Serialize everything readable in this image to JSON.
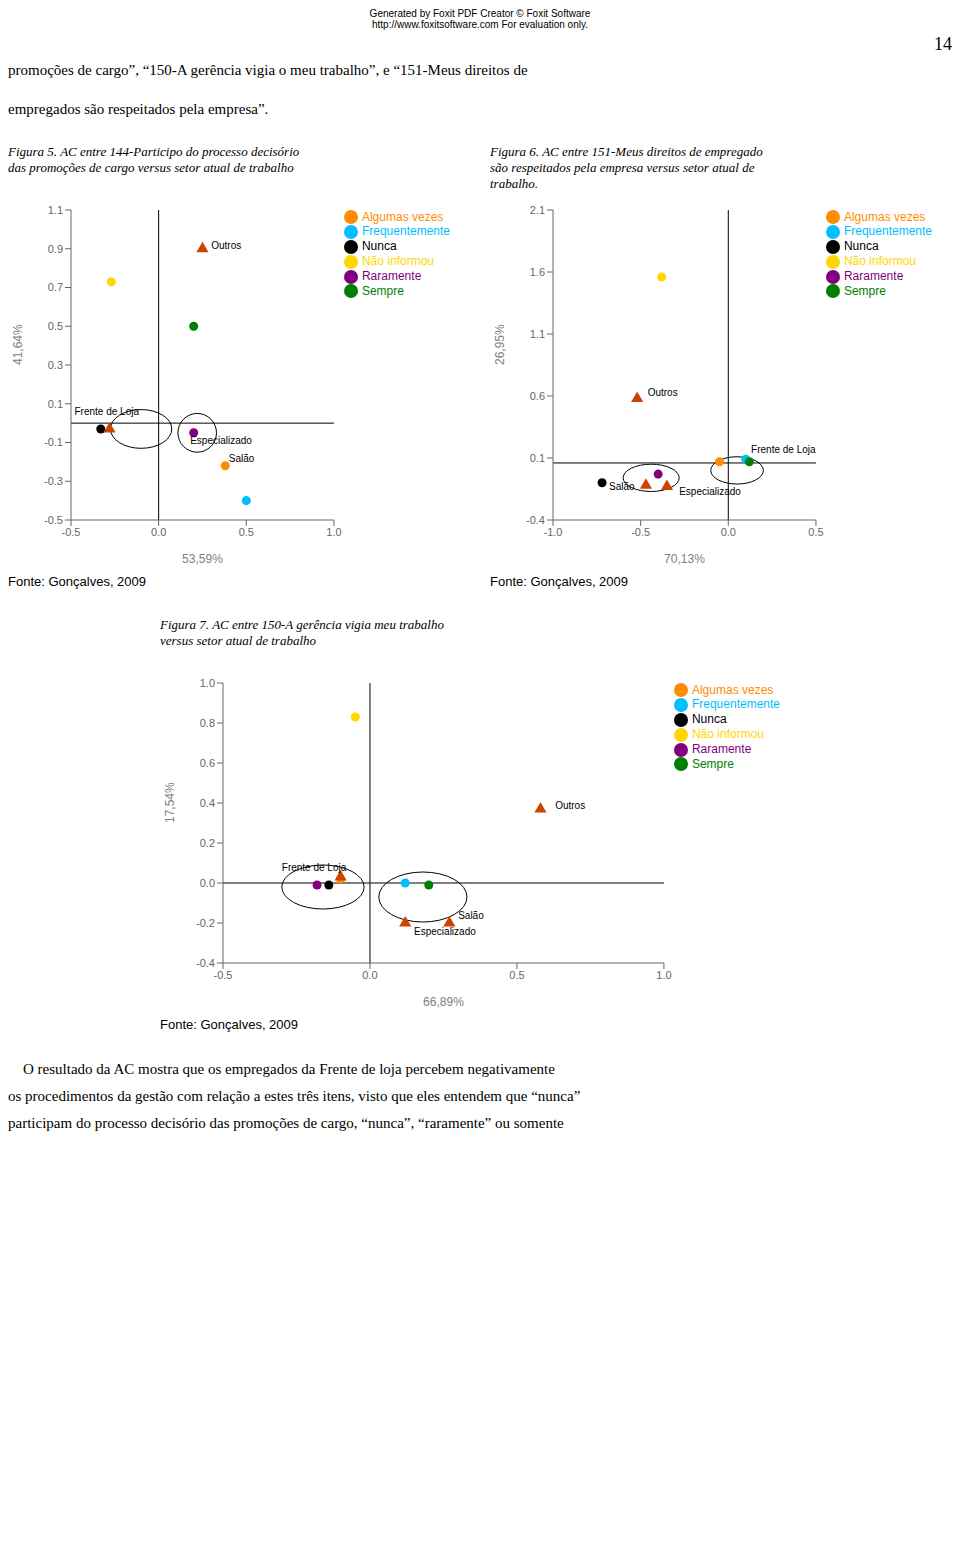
{
  "header_lines": [
    "Generated by Foxit PDF Creator © Foxit Software",
    "http://www.foxitsoftware.com    For evaluation only."
  ],
  "page_number": "14",
  "text_before": "promoções de cargo”, “150-A gerência vigia o meu trabalho”, e “151-Meus direitos de\n\nempregados são respeitados pela empresa”.",
  "text_after": "    O resultado da AC mostra que os empregados da Frente de loja percebem negativamente\nos procedimentos da gestão com relação a estes três itens, visto que eles entendem que “nunca”\nparticipam do processo decisório das promoções de cargo, “nunca”, “raramente” ou somente",
  "chart_data": [
    {
      "type": "scatter",
      "title": "Figura 5. AC entre 144-Participo do processo decisório\ndas promoções de cargo versus setor atual de trabalho",
      "source": "Fonte: Gonçalves, 2009",
      "x_label": "53,59%",
      "y_label": "41,64%",
      "xlim": [
        -0.5,
        1.0
      ],
      "ylim": [
        -0.5,
        1.1
      ],
      "xticks": [
        -0.5,
        {
          "value": 0,
          "label": "0.0"
        },
        0.5,
        {
          "value": 1,
          "label": "1.0"
        }
      ],
      "yticks": [
        -0.5,
        -0.3,
        -0.1,
        0.1,
        0.3,
        0.5,
        0.7,
        0.9,
        1.1
      ],
      "grid": false,
      "hline": 0.0,
      "vline": 0.0,
      "series": [
        {
          "name": "Nunca",
          "color": "#000000",
          "marker": "circle",
          "x": [
            -0.33
          ],
          "y": [
            -0.03
          ]
        },
        {
          "name": "Raramente",
          "color": "#800080",
          "marker": "circle",
          "x": [
            0.2
          ],
          "y": [
            -0.05
          ]
        },
        {
          "name": "Algumas vezes",
          "color": "#FF8C00",
          "marker": "circle",
          "x": [
            0.38
          ],
          "y": [
            -0.22
          ]
        },
        {
          "name": "Frequentemente",
          "color": "#00BFFF",
          "marker": "circle",
          "x": [
            0.5
          ],
          "y": [
            -0.4
          ]
        },
        {
          "name": "Sempre",
          "color": "#008000",
          "marker": "circle",
          "x": [
            0.2
          ],
          "y": [
            0.5
          ]
        },
        {
          "name": "Não informou",
          "color": "#FFD700",
          "marker": "circle",
          "x": [
            -0.27
          ],
          "y": [
            0.73
          ]
        },
        {
          "color": "#CC4400",
          "marker": "triangle",
          "x": [
            0.25,
            -0.28
          ],
          "y": [
            0.9,
            -0.03
          ]
        }
      ],
      "annotations": [
        {
          "text": "Frente de Loja",
          "x": -0.48,
          "y": 0.04
        },
        {
          "text": "Especializado",
          "x": 0.18,
          "y": -0.11
        },
        {
          "text": "Salão",
          "x": 0.4,
          "y": -0.2
        },
        {
          "text": "Outros",
          "x": 0.3,
          "y": 0.9
        }
      ],
      "ellipses": [
        {
          "cx": -0.1,
          "cy": -0.03,
          "w": 0.35,
          "h": 0.2
        },
        {
          "cx": 0.22,
          "cy": -0.05,
          "w": 0.22,
          "h": 0.2
        }
      ]
    },
    {
      "type": "scatter",
      "title": "Figura 6. AC entre 151-Meus direitos de empregado\nsão respeitados pela empresa versus setor atual de\ntrabalho.",
      "source": "Fonte: Gonçalves, 2009",
      "x_label": "70,13%",
      "y_label": "26,95%",
      "xlim": [
        -1.0,
        0.5
      ],
      "ylim": [
        -0.4,
        2.1
      ],
      "xticks": [
        {
          "value": -1,
          "label": "-1.0"
        },
        -0.5,
        {
          "value": 0,
          "label": "0.0"
        },
        0.5
      ],
      "yticks": [
        -0.4,
        0.1,
        0.6,
        1.1,
        1.6,
        2.1
      ],
      "grid": false,
      "hline": 0.06,
      "vline": 0.0,
      "series": [
        {
          "name": "Nunca",
          "color": "#000000",
          "marker": "circle",
          "x": [
            -0.72
          ],
          "y": [
            -0.1
          ]
        },
        {
          "name": "Raramente",
          "color": "#800080",
          "marker": "circle",
          "x": [
            -0.4
          ],
          "y": [
            -0.03
          ]
        },
        {
          "name": "Algumas vezes",
          "color": "#FF8C00",
          "marker": "circle",
          "x": [
            -0.05
          ],
          "y": [
            0.07
          ]
        },
        {
          "name": "Frequentemente",
          "color": "#00BFFF",
          "marker": "circle",
          "x": [
            0.1
          ],
          "y": [
            0.09
          ]
        },
        {
          "name": "Sempre",
          "color": "#008000",
          "marker": "circle",
          "x": [
            0.12
          ],
          "y": [
            0.07
          ]
        },
        {
          "name": "Não informou",
          "color": "#FFD700",
          "marker": "circle",
          "x": [
            -0.38
          ],
          "y": [
            1.56
          ]
        },
        {
          "color": "#CC4400",
          "marker": "triangle",
          "x": [
            -0.52,
            -0.35,
            -0.47
          ],
          "y": [
            0.58,
            -0.13,
            -0.12
          ]
        }
      ],
      "annotations": [
        {
          "text": "Salão",
          "x": -0.68,
          "y": -0.16
        },
        {
          "text": "Frente de Loja",
          "x": 0.13,
          "y": 0.14
        },
        {
          "text": "Outros",
          "x": -0.46,
          "y": 0.6
        },
        {
          "text": "Especializado",
          "x": -0.28,
          "y": -0.2
        }
      ],
      "ellipses": [
        {
          "cx": -0.44,
          "cy": -0.06,
          "w": 0.32,
          "h": 0.22
        },
        {
          "cx": 0.05,
          "cy": 0.0,
          "w": 0.3,
          "h": 0.22
        }
      ]
    },
    {
      "type": "scatter",
      "title": "Figura 7. AC entre 150-A gerência vigia meu trabalho\nversus setor atual de trabalho",
      "source": "Fonte: Gonçalves, 2009",
      "x_label": "66,89%",
      "y_label": "17,54%",
      "xlim": [
        -0.5,
        1.0
      ],
      "ylim": [
        -0.4,
        1.0
      ],
      "xticks": [
        -0.5,
        {
          "value": 0,
          "label": "0.0"
        },
        0.5,
        {
          "value": 1,
          "label": "1.0"
        }
      ],
      "yticks": [
        -0.4,
        -0.2,
        {
          "value": 0,
          "label": "0.0"
        },
        0.2,
        0.4,
        0.6,
        0.8,
        {
          "value": 1.0,
          "label": "1.0"
        }
      ],
      "grid": false,
      "hline": 0.0,
      "vline": 0.0,
      "series": [
        {
          "name": "Nunca",
          "color": "#000000",
          "marker": "circle",
          "x": [
            -0.14
          ],
          "y": [
            -0.01
          ]
        },
        {
          "name": "Raramente",
          "color": "#800080",
          "marker": "circle",
          "x": [
            -0.18
          ],
          "y": [
            -0.01
          ]
        },
        {
          "name": "Algumas vezes",
          "color": "#FF8C00",
          "marker": "circle",
          "x": [
            -0.1
          ],
          "y": [
            0.02
          ]
        },
        {
          "name": "Frequentemente",
          "color": "#00BFFF",
          "marker": "circle",
          "x": [
            0.12
          ],
          "y": [
            0.0
          ]
        },
        {
          "name": "Sempre",
          "color": "#008000",
          "marker": "circle",
          "x": [
            0.2
          ],
          "y": [
            -0.01
          ]
        },
        {
          "name": "Não informou",
          "color": "#FFD700",
          "marker": "circle",
          "x": [
            -0.05
          ],
          "y": [
            0.83
          ]
        },
        {
          "color": "#CC4400",
          "marker": "triangle",
          "x": [
            0.58,
            0.12,
            -0.1,
            0.27
          ],
          "y": [
            0.37,
            -0.2,
            0.03,
            -0.2
          ]
        }
      ],
      "annotations": [
        {
          "text": "Frente de Loja",
          "x": -0.3,
          "y": 0.06
        },
        {
          "text": "Outros",
          "x": 0.63,
          "y": 0.37
        },
        {
          "text": "Especializado",
          "x": 0.15,
          "y": -0.26
        },
        {
          "text": "Salão",
          "x": 0.3,
          "y": -0.18
        }
      ],
      "ellipses": [
        {
          "cx": -0.16,
          "cy": -0.02,
          "w": 0.28,
          "h": 0.22
        },
        {
          "cx": 0.18,
          "cy": -0.07,
          "w": 0.3,
          "h": 0.25
        }
      ]
    }
  ]
}
